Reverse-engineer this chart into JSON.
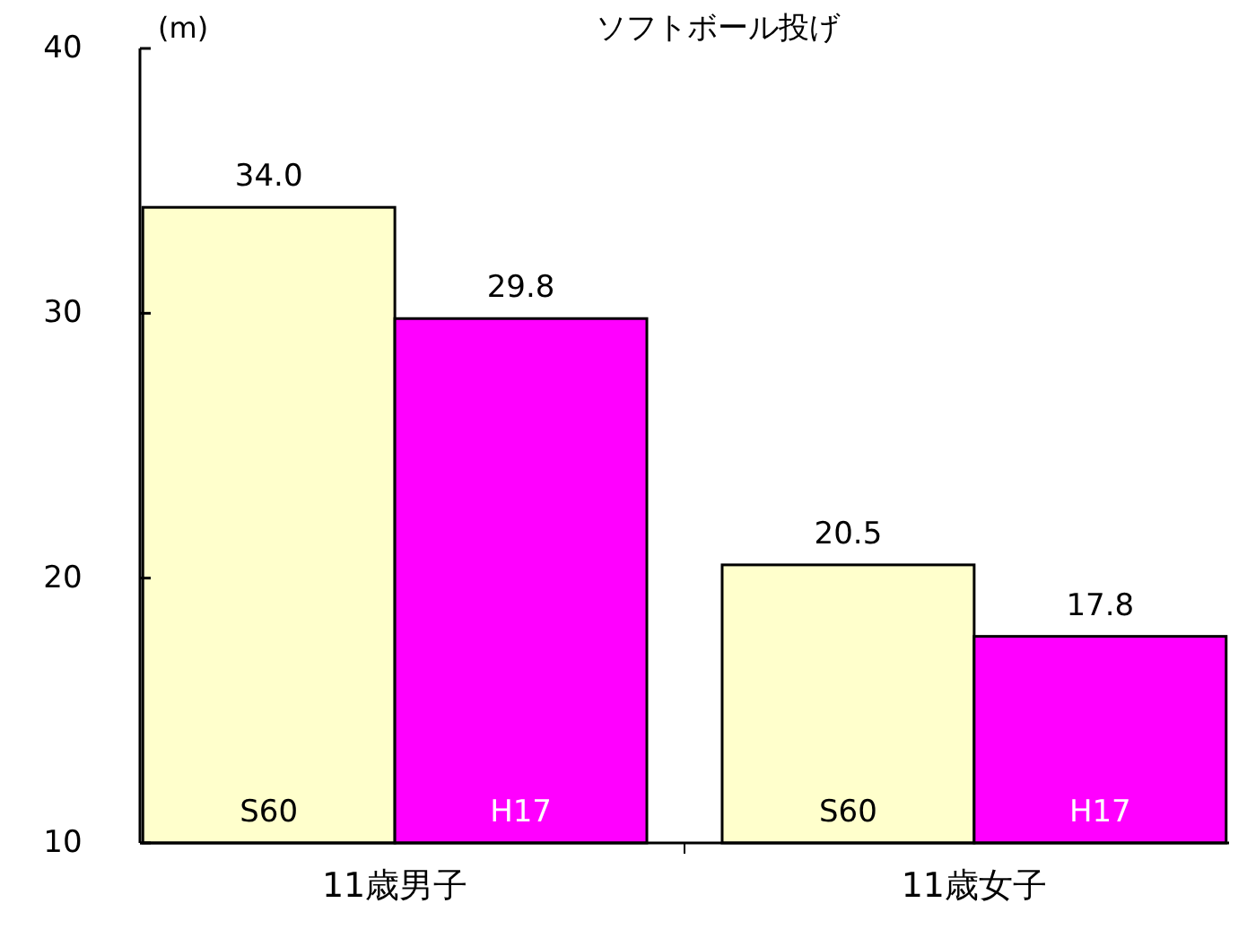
{
  "chart_data": {
    "type": "bar",
    "title": "ソフトボール投げ",
    "ylabel": "(m)",
    "categories": [
      "11歳男子",
      "11歳女子"
    ],
    "series": [
      {
        "name": "S60",
        "color": "#ffffcc",
        "values": [
          34.0,
          20.5
        ],
        "value_labels": [
          "34.0",
          "20.5"
        ]
      },
      {
        "name": "H17",
        "color": "#ff00ff",
        "values": [
          29.8,
          17.8
        ],
        "value_labels": [
          "29.8",
          "17.8"
        ]
      }
    ],
    "ylim": [
      10,
      40
    ],
    "yticks": [
      10,
      20,
      30,
      40
    ],
    "legend": false,
    "grid": false
  }
}
